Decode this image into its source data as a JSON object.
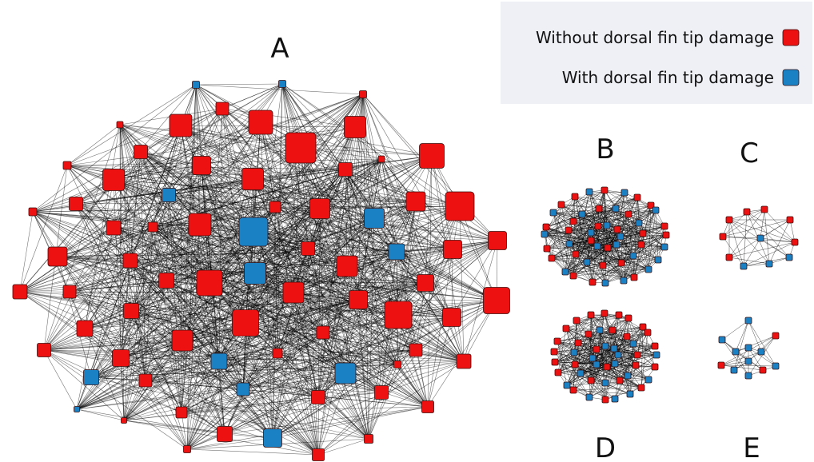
{
  "legend": {
    "items": [
      {
        "label": "Without dorsal fin tip damage",
        "color": "#ee1111"
      },
      {
        "label": "With dorsal fin tip damage",
        "color": "#1a82c4"
      }
    ],
    "background": "#eef0f6"
  },
  "colors": {
    "undamaged": "#ee1111",
    "damaged": "#1a82c4",
    "edge": "#000000"
  },
  "panels": [
    {
      "id": "A",
      "label": "A",
      "undamaged_nodes": 62,
      "damaged_nodes": 12
    },
    {
      "id": "B",
      "label": "B",
      "undamaged_nodes": 26,
      "damaged_nodes": 22
    },
    {
      "id": "C",
      "label": "C",
      "undamaged_nodes": 7,
      "damaged_nodes": 4
    },
    {
      "id": "D",
      "label": "D",
      "undamaged_nodes": 28,
      "damaged_nodes": 18
    },
    {
      "id": "E",
      "label": "E",
      "undamaged_nodes": 3,
      "damaged_nodes": 9
    }
  ]
}
